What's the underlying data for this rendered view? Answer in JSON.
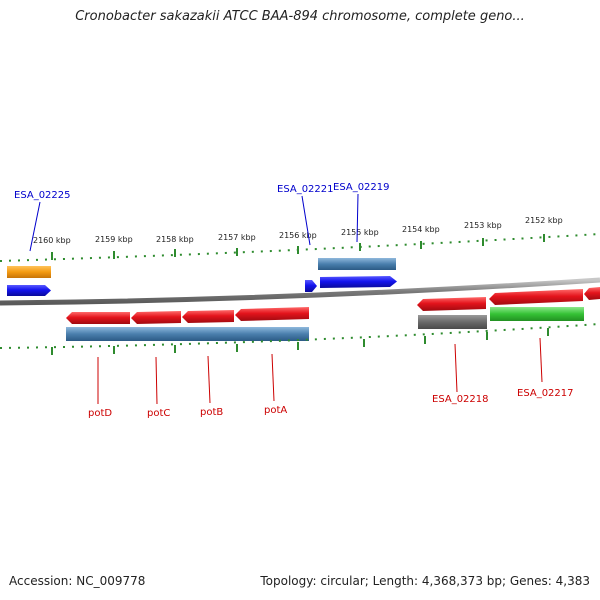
{
  "title": "Cronobacter sakazakii ATCC BAA-894 chromosome, complete geno...",
  "footer": {
    "accession": "Accession: NC_009778",
    "summary": "Topology: circular; Length: 4,368,373 bp; Genes: 4,383"
  },
  "colors": {
    "background": "#ffffff",
    "backbone": "#8a8a8a",
    "ticks": "#2e8b2e",
    "forward_label": "#0000cc",
    "reverse_label": "#cc0000",
    "gene_red": "#e4141c",
    "gene_blue": "#1414ee",
    "gene_orange": "#f39a12",
    "cds_steelblue": "#4a7fad",
    "cds_gray": "#6a6a6a",
    "cds_green": "#35c235"
  },
  "scale": {
    "unit": "kbp",
    "ticks": [
      {
        "label": "2160 kbp"
      },
      {
        "label": "2159 kbp"
      },
      {
        "label": "2158 kbp"
      },
      {
        "label": "2157 kbp"
      },
      {
        "label": "2156 kbp"
      },
      {
        "label": "2155 kbp"
      },
      {
        "label": "2154 kbp"
      },
      {
        "label": "2153 kbp"
      },
      {
        "label": "2152 kbp"
      }
    ]
  },
  "features": {
    "forward": [
      {
        "name": "ESA_02225",
        "color": "orange",
        "labeled": true
      },
      {
        "name": "ESA_02221",
        "color": "blue",
        "labeled": true
      },
      {
        "name": "ESA_02219",
        "color": "blue",
        "labeled": true
      }
    ],
    "reverse": [
      {
        "name": "potD",
        "color": "red",
        "labeled": true
      },
      {
        "name": "potC",
        "color": "red",
        "labeled": true
      },
      {
        "name": "potB",
        "color": "red",
        "labeled": true
      },
      {
        "name": "potA",
        "color": "red",
        "labeled": true
      },
      {
        "name": "ESA_02218",
        "color": "red",
        "labeled": true
      },
      {
        "name": "ESA_02217",
        "color": "red",
        "labeled": true
      }
    ]
  }
}
